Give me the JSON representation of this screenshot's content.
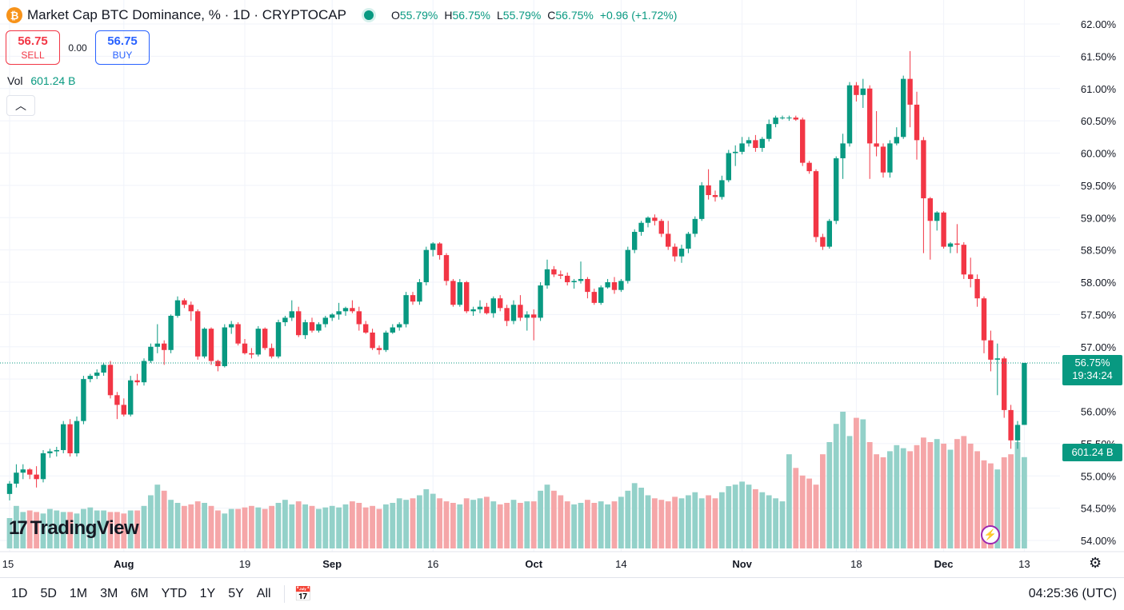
{
  "header": {
    "icon": "bitcoin-icon",
    "title": "Market Cap BTC Dominance, % · 1D · CRYPTOCAP",
    "ohlc": [
      {
        "k": "O",
        "v": "55.79%"
      },
      {
        "k": "H",
        "v": "56.75%"
      },
      {
        "k": "L",
        "v": "55.79%"
      },
      {
        "k": "C",
        "v": "56.75%"
      },
      {
        "k": "",
        "v": "+0.96 (+1.72%)"
      }
    ]
  },
  "trade": {
    "sell_price": "56.75",
    "sell_label": "SELL",
    "spread": "0.00",
    "buy_price": "56.75",
    "buy_label": "BUY"
  },
  "volume_legend": {
    "label": "Vol",
    "value": "601.24 B"
  },
  "logo_text": "TradingView",
  "logo_mark": "17",
  "last_price_tag": {
    "price": "56.75%",
    "countdown": "19:34:24"
  },
  "volume_tag": "601.24 B",
  "bottom": {
    "timeframes": [
      "1D",
      "5D",
      "1M",
      "3M",
      "6M",
      "YTD",
      "1Y",
      "5Y",
      "All"
    ],
    "clock": "04:25:36 (UTC)"
  },
  "colors": {
    "up": "#089981",
    "down": "#f23645",
    "vol_up": "#93d1c9",
    "vol_down": "#f5a6a8",
    "grid": "#f0f3fa"
  },
  "chart_data": {
    "type": "candlestick",
    "title": "Market Cap BTC Dominance, %",
    "yaxis_ticks": [
      "62.00%",
      "61.50%",
      "61.00%",
      "60.50%",
      "60.00%",
      "59.50%",
      "59.00%",
      "58.50%",
      "58.00%",
      "57.50%",
      "57.00%",
      "56.50%",
      "56.00%",
      "55.50%",
      "55.00%",
      "54.50%",
      "54.00%"
    ],
    "ylim": [
      54.0,
      62.0
    ],
    "xaxis_ticks": [
      {
        "label": "15",
        "day": 0
      },
      {
        "label": "Aug",
        "day": 17
      },
      {
        "label": "19",
        "day": 35
      },
      {
        "label": "Sep",
        "day": 48
      },
      {
        "label": "16",
        "day": 63
      },
      {
        "label": "Oct",
        "day": 78
      },
      {
        "label": "14",
        "day": 91
      },
      {
        "label": "Nov",
        "day": 109
      },
      {
        "label": "18",
        "day": 126
      },
      {
        "label": "Dec",
        "day": 139
      },
      {
        "label": "13",
        "day": 151
      }
    ],
    "last_price": 56.75,
    "candles": [
      [
        54.72,
        54.92,
        54.62,
        54.88
      ],
      [
        54.88,
        55.18,
        54.82,
        55.05
      ],
      [
        55.05,
        55.18,
        54.95,
        55.1
      ],
      [
        55.1,
        55.12,
        54.95,
        55.02
      ],
      [
        55.02,
        55.15,
        54.82,
        54.95
      ],
      [
        54.95,
        55.4,
        54.9,
        55.35
      ],
      [
        55.35,
        55.42,
        55.28,
        55.38
      ],
      [
        55.38,
        55.45,
        55.3,
        55.4
      ],
      [
        55.4,
        55.85,
        55.35,
        55.8
      ],
      [
        55.8,
        55.88,
        55.3,
        55.35
      ],
      [
        55.35,
        55.92,
        55.3,
        55.85
      ],
      [
        55.85,
        56.55,
        55.8,
        56.5
      ],
      [
        56.5,
        56.58,
        56.45,
        56.55
      ],
      [
        56.55,
        56.65,
        56.5,
        56.6
      ],
      [
        56.6,
        56.75,
        56.55,
        56.72
      ],
      [
        56.72,
        56.78,
        56.2,
        56.25
      ],
      [
        56.25,
        56.3,
        55.88,
        56.1
      ],
      [
        56.1,
        56.2,
        55.92,
        55.95
      ],
      [
        55.95,
        56.55,
        55.92,
        56.48
      ],
      [
        56.48,
        56.58,
        56.4,
        56.45
      ],
      [
        56.45,
        56.82,
        56.4,
        56.78
      ],
      [
        56.78,
        57.05,
        56.75,
        57.0
      ],
      [
        57.0,
        57.35,
        56.9,
        57.05
      ],
      [
        57.05,
        57.1,
        56.72,
        56.95
      ],
      [
        56.95,
        57.5,
        56.9,
        57.48
      ],
      [
        57.48,
        57.78,
        57.45,
        57.72
      ],
      [
        57.72,
        57.75,
        57.6,
        57.65
      ],
      [
        57.65,
        57.7,
        57.4,
        57.55
      ],
      [
        57.55,
        57.58,
        56.8,
        56.85
      ],
      [
        56.85,
        57.3,
        56.82,
        57.28
      ],
      [
        57.28,
        57.3,
        56.72,
        56.78
      ],
      [
        56.78,
        56.8,
        56.62,
        56.7
      ],
      [
        56.7,
        57.35,
        56.68,
        57.3
      ],
      [
        57.3,
        57.4,
        57.2,
        57.35
      ],
      [
        57.35,
        57.38,
        57.02,
        57.05
      ],
      [
        57.05,
        57.12,
        56.88,
        56.9
      ],
      [
        56.9,
        56.98,
        56.82,
        56.88
      ],
      [
        56.88,
        57.32,
        56.85,
        57.28
      ],
      [
        57.28,
        57.3,
        56.95,
        56.98
      ],
      [
        56.98,
        57.05,
        56.82,
        56.85
      ],
      [
        56.85,
        57.42,
        56.82,
        57.38
      ],
      [
        57.38,
        57.48,
        57.32,
        57.45
      ],
      [
        57.45,
        57.72,
        57.4,
        57.55
      ],
      [
        57.55,
        57.62,
        57.15,
        57.18
      ],
      [
        57.18,
        57.42,
        57.12,
        57.38
      ],
      [
        57.38,
        57.45,
        57.22,
        57.25
      ],
      [
        57.25,
        57.38,
        57.22,
        57.35
      ],
      [
        57.35,
        57.48,
        57.3,
        57.45
      ],
      [
        57.45,
        57.52,
        57.4,
        57.5
      ],
      [
        57.5,
        57.68,
        57.42,
        57.55
      ],
      [
        57.55,
        57.62,
        57.48,
        57.6
      ],
      [
        57.6,
        57.72,
        57.52,
        57.55
      ],
      [
        57.55,
        57.62,
        57.25,
        57.35
      ],
      [
        57.35,
        57.4,
        57.2,
        57.22
      ],
      [
        57.22,
        57.28,
        56.95,
        56.98
      ],
      [
        56.98,
        57.02,
        56.88,
        56.95
      ],
      [
        56.95,
        57.25,
        56.92,
        57.22
      ],
      [
        57.22,
        57.35,
        57.2,
        57.3
      ],
      [
        57.3,
        57.38,
        57.25,
        57.35
      ],
      [
        57.35,
        57.85,
        57.3,
        57.8
      ],
      [
        57.8,
        57.85,
        57.65,
        57.7
      ],
      [
        57.7,
        58.05,
        57.65,
        58.0
      ],
      [
        58.0,
        58.55,
        57.95,
        58.5
      ],
      [
        58.5,
        58.62,
        58.4,
        58.6
      ],
      [
        58.6,
        58.62,
        58.35,
        58.42
      ],
      [
        58.42,
        58.45,
        57.95,
        58.02
      ],
      [
        58.02,
        58.05,
        57.62,
        57.65
      ],
      [
        57.65,
        58.05,
        57.62,
        58.0
      ],
      [
        58.0,
        58.02,
        57.52,
        57.55
      ],
      [
        57.55,
        57.62,
        57.48,
        57.58
      ],
      [
        57.58,
        57.72,
        57.52,
        57.62
      ],
      [
        57.62,
        57.68,
        57.5,
        57.52
      ],
      [
        57.52,
        57.78,
        57.45,
        57.75
      ],
      [
        57.75,
        57.8,
        57.55,
        57.6
      ],
      [
        57.6,
        57.65,
        57.32,
        57.4
      ],
      [
        57.4,
        57.72,
        57.35,
        57.65
      ],
      [
        57.65,
        57.8,
        57.4,
        57.45
      ],
      [
        57.45,
        57.55,
        57.25,
        57.5
      ],
      [
        57.5,
        57.58,
        57.1,
        57.45
      ],
      [
        57.45,
        58.0,
        57.4,
        57.95
      ],
      [
        57.95,
        58.35,
        57.9,
        58.2
      ],
      [
        58.2,
        58.25,
        58.08,
        58.12
      ],
      [
        58.12,
        58.18,
        58.05,
        58.1
      ],
      [
        58.1,
        58.15,
        57.95,
        58.0
      ],
      [
        58.0,
        58.05,
        57.9,
        58.02
      ],
      [
        58.02,
        58.32,
        57.98,
        58.05
      ],
      [
        58.05,
        58.08,
        57.75,
        57.85
      ],
      [
        57.85,
        57.9,
        57.65,
        57.68
      ],
      [
        57.68,
        57.95,
        57.65,
        57.92
      ],
      [
        57.92,
        58.05,
        57.9,
        58.0
      ],
      [
        58.0,
        58.08,
        57.82,
        57.88
      ],
      [
        57.88,
        58.05,
        57.85,
        58.02
      ],
      [
        58.02,
        58.55,
        57.98,
        58.5
      ],
      [
        58.5,
        58.82,
        58.45,
        58.78
      ],
      [
        58.78,
        58.95,
        58.72,
        58.92
      ],
      [
        58.92,
        59.02,
        58.85,
        59.0
      ],
      [
        59.0,
        59.05,
        58.88,
        58.95
      ],
      [
        58.95,
        58.98,
        58.7,
        58.75
      ],
      [
        58.75,
        58.95,
        58.5,
        58.55
      ],
      [
        58.55,
        58.6,
        58.32,
        58.4
      ],
      [
        58.4,
        58.58,
        58.3,
        58.52
      ],
      [
        58.52,
        58.78,
        58.45,
        58.75
      ],
      [
        58.75,
        59.02,
        58.7,
        58.98
      ],
      [
        58.98,
        59.55,
        58.95,
        59.5
      ],
      [
        59.5,
        59.75,
        59.28,
        59.35
      ],
      [
        59.35,
        59.42,
        59.25,
        59.32
      ],
      [
        59.32,
        59.65,
        59.28,
        59.58
      ],
      [
        59.58,
        60.05,
        59.55,
        60.0
      ],
      [
        60.0,
        60.12,
        59.8,
        60.02
      ],
      [
        60.02,
        60.25,
        59.98,
        60.15
      ],
      [
        60.15,
        60.25,
        60.1,
        60.2
      ],
      [
        60.2,
        60.28,
        60.02,
        60.08
      ],
      [
        60.08,
        60.25,
        60.02,
        60.22
      ],
      [
        60.22,
        60.52,
        60.18,
        60.45
      ],
      [
        60.45,
        60.58,
        60.4,
        60.55
      ],
      [
        60.55,
        60.58,
        60.52,
        60.55
      ],
      [
        60.55,
        60.58,
        60.5,
        60.55
      ],
      [
        60.55,
        60.58,
        60.5,
        60.52
      ],
      [
        60.52,
        60.55,
        59.8,
        59.85
      ],
      [
        59.85,
        59.88,
        59.68,
        59.72
      ],
      [
        59.72,
        59.75,
        58.62,
        58.7
      ],
      [
        58.7,
        58.75,
        58.5,
        58.55
      ],
      [
        58.55,
        58.98,
        58.52,
        58.95
      ],
      [
        58.95,
        59.95,
        58.9,
        59.92
      ],
      [
        59.92,
        60.3,
        59.6,
        60.15
      ],
      [
        60.15,
        61.1,
        60.1,
        61.05
      ],
      [
        61.05,
        61.1,
        60.8,
        60.9
      ],
      [
        60.9,
        61.15,
        60.7,
        61.0
      ],
      [
        61.0,
        61.05,
        59.6,
        60.15
      ],
      [
        60.15,
        60.65,
        59.95,
        60.1
      ],
      [
        60.1,
        60.15,
        59.62,
        59.7
      ],
      [
        59.7,
        60.2,
        59.62,
        60.15
      ],
      [
        60.15,
        60.4,
        60.12,
        60.25
      ],
      [
        60.25,
        61.2,
        60.22,
        61.15
      ],
      [
        61.15,
        61.58,
        60.4,
        60.75
      ],
      [
        60.75,
        60.95,
        59.9,
        60.2
      ],
      [
        60.2,
        60.25,
        58.45,
        59.3
      ],
      [
        59.3,
        59.32,
        58.35,
        58.95
      ],
      [
        58.95,
        59.1,
        58.8,
        59.08
      ],
      [
        59.08,
        59.1,
        58.52,
        58.55
      ],
      [
        58.55,
        58.62,
        58.45,
        58.6
      ],
      [
        58.6,
        58.9,
        58.45,
        58.58
      ],
      [
        58.58,
        58.62,
        58.05,
        58.12
      ],
      [
        58.12,
        58.38,
        57.92,
        58.05
      ],
      [
        58.05,
        58.12,
        57.62,
        57.75
      ],
      [
        57.75,
        57.78,
        56.9,
        57.1
      ],
      [
        57.1,
        57.25,
        56.62,
        56.8
      ],
      [
        56.8,
        57.05,
        56.25,
        56.82
      ],
      [
        56.82,
        56.85,
        55.9,
        56.02
      ],
      [
        56.02,
        56.1,
        55.42,
        55.55
      ],
      [
        55.55,
        55.85,
        55.42,
        55.79
      ],
      [
        55.79,
        56.75,
        55.79,
        56.75
      ]
    ],
    "volumes_billion": [
      200,
      280,
      240,
      250,
      240,
      230,
      260,
      250,
      240,
      240,
      230,
      260,
      270,
      250,
      250,
      240,
      240,
      230,
      250,
      250,
      280,
      350,
      420,
      380,
      320,
      300,
      280,
      290,
      310,
      300,
      280,
      250,
      230,
      260,
      260,
      270,
      280,
      270,
      260,
      280,
      300,
      320,
      290,
      310,
      290,
      280,
      260,
      270,
      280,
      270,
      290,
      310,
      300,
      270,
      280,
      260,
      290,
      300,
      330,
      320,
      330,
      350,
      390,
      360,
      330,
      310,
      300,
      290,
      330,
      320,
      330,
      340,
      310,
      290,
      300,
      320,
      300,
      310,
      310,
      380,
      420,
      380,
      350,
      310,
      290,
      300,
      320,
      300,
      310,
      290,
      310,
      340,
      380,
      430,
      400,
      350,
      330,
      320,
      310,
      340,
      330,
      350,
      370,
      330,
      350,
      330,
      370,
      410,
      420,
      440,
      420,
      390,
      370,
      350,
      330,
      310,
      620,
      530,
      480,
      460,
      420,
      620,
      700,
      820,
      900,
      740,
      860,
      850,
      700,
      620,
      600,
      640,
      680,
      660,
      640,
      680,
      730,
      700,
      720,
      690,
      650,
      720,
      740,
      690,
      640,
      580,
      560,
      520,
      600,
      620,
      700,
      601
    ]
  }
}
